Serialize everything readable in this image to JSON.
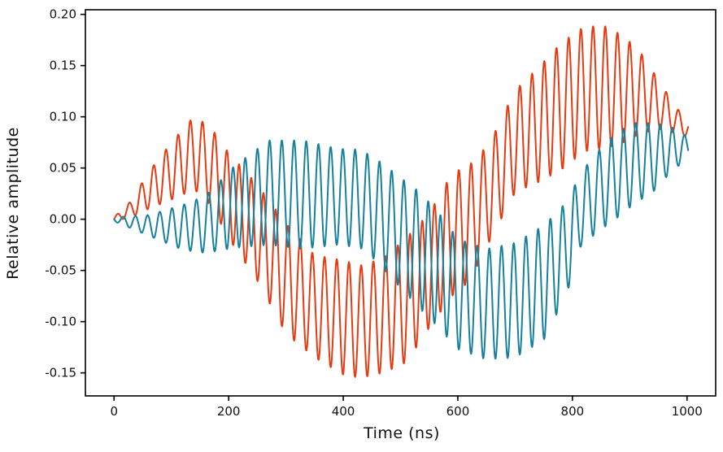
{
  "chart_data": {
    "type": "line",
    "title": "",
    "xlabel": "Time (ns)",
    "ylabel": "Relative amplitude",
    "xlim": [
      -50,
      1050
    ],
    "ylim": [
      -0.1725,
      0.2045
    ],
    "grid": false,
    "legend": "none",
    "frame_color": "#000000",
    "tick_label_color": "#111111",
    "background_color": "#ffffff",
    "x_ticks": {
      "values": [
        0,
        200,
        400,
        600,
        800,
        1000
      ],
      "labels": [
        "0",
        "200",
        "400",
        "600",
        "800",
        "1000"
      ]
    },
    "y_ticks": {
      "values": [
        0.2,
        0.15,
        0.1,
        0.05,
        0.0,
        -0.05,
        -0.1,
        -0.15
      ],
      "labels": [
        "0.20",
        "0.15",
        "0.10",
        "0.05",
        "0.00",
        "-0.05",
        "-0.10",
        "-0.15"
      ]
    },
    "signal_model": "value(t) = midline(t) + phase_sign * amplitude(t) * sin(2*pi*t / carrier_period_ns)",
    "carrier_period_ns": 21.3,
    "t_start": 0,
    "t_end": 1002,
    "t_step": 0.75,
    "series": [
      {
        "name": "signal-red",
        "color": "#e63b11",
        "linewidth": 2,
        "phase_sign": 1,
        "midline": [
          [
            0,
            0.0
          ],
          [
            30,
            0.01
          ],
          [
            60,
            0.028
          ],
          [
            100,
            0.047
          ],
          [
            140,
            0.065
          ],
          [
            170,
            0.051
          ],
          [
            200,
            0.023
          ],
          [
            250,
            -0.013
          ],
          [
            300,
            -0.058
          ],
          [
            350,
            -0.085
          ],
          [
            400,
            -0.096
          ],
          [
            430,
            -0.1
          ],
          [
            470,
            -0.094
          ],
          [
            510,
            -0.079
          ],
          [
            550,
            -0.05
          ],
          [
            590,
            -0.015
          ],
          [
            620,
            -0.004
          ],
          [
            655,
            0.026
          ],
          [
            700,
            0.076
          ],
          [
            740,
            0.092
          ],
          [
            780,
            0.11
          ],
          [
            820,
            0.127
          ],
          [
            855,
            0.129
          ],
          [
            890,
            0.127
          ],
          [
            920,
            0.123
          ],
          [
            955,
            0.11
          ],
          [
            980,
            0.097
          ],
          [
            1002,
            0.088
          ]
        ],
        "amplitude": [
          [
            0,
            0.002
          ],
          [
            30,
            0.008
          ],
          [
            60,
            0.018
          ],
          [
            100,
            0.028
          ],
          [
            140,
            0.036
          ],
          [
            170,
            0.038
          ],
          [
            200,
            0.042
          ],
          [
            250,
            0.047
          ],
          [
            300,
            0.054
          ],
          [
            350,
            0.05
          ],
          [
            400,
            0.056
          ],
          [
            430,
            0.055
          ],
          [
            470,
            0.056
          ],
          [
            510,
            0.061
          ],
          [
            550,
            0.056
          ],
          [
            590,
            0.06
          ],
          [
            620,
            0.057
          ],
          [
            655,
            0.048
          ],
          [
            700,
            0.05
          ],
          [
            740,
            0.056
          ],
          [
            780,
            0.062
          ],
          [
            820,
            0.061
          ],
          [
            855,
            0.06
          ],
          [
            890,
            0.052
          ],
          [
            920,
            0.039
          ],
          [
            955,
            0.022
          ],
          [
            980,
            0.013
          ],
          [
            1002,
            0.008
          ]
        ],
        "observed_extrema": {
          "max": 0.19,
          "max_at_t": 840,
          "min": -0.155,
          "min_at_t": 430,
          "end_value": 0.089
        }
      },
      {
        "name": "signal-teal",
        "color": "#16809e",
        "linewidth": 2,
        "phase_sign": -1,
        "midline": [
          [
            0,
            0.0
          ],
          [
            60,
            -0.006
          ],
          [
            120,
            -0.008
          ],
          [
            160,
            -0.005
          ],
          [
            210,
            0.012
          ],
          [
            270,
            0.026
          ],
          [
            330,
            0.024
          ],
          [
            390,
            0.022
          ],
          [
            430,
            0.02
          ],
          [
            460,
            0.008
          ],
          [
            490,
            -0.008
          ],
          [
            535,
            -0.031
          ],
          [
            570,
            -0.052
          ],
          [
            600,
            -0.073
          ],
          [
            650,
            -0.083
          ],
          [
            700,
            -0.079
          ],
          [
            750,
            -0.062
          ],
          [
            790,
            -0.028
          ],
          [
            815,
            0.01
          ],
          [
            850,
            0.03
          ],
          [
            880,
            0.044
          ],
          [
            910,
            0.055
          ],
          [
            940,
            0.06
          ],
          [
            970,
            0.068
          ],
          [
            1002,
            0.07
          ]
        ],
        "amplitude": [
          [
            0,
            0.002
          ],
          [
            60,
            0.01
          ],
          [
            120,
            0.022
          ],
          [
            160,
            0.028
          ],
          [
            210,
            0.04
          ],
          [
            270,
            0.051
          ],
          [
            330,
            0.053
          ],
          [
            390,
            0.047
          ],
          [
            430,
            0.048
          ],
          [
            460,
            0.05
          ],
          [
            490,
            0.053
          ],
          [
            535,
            0.057
          ],
          [
            570,
            0.056
          ],
          [
            600,
            0.054
          ],
          [
            650,
            0.054
          ],
          [
            700,
            0.056
          ],
          [
            750,
            0.056
          ],
          [
            790,
            0.045
          ],
          [
            815,
            0.036
          ],
          [
            850,
            0.04
          ],
          [
            880,
            0.042
          ],
          [
            910,
            0.039
          ],
          [
            940,
            0.034
          ],
          [
            970,
            0.023
          ],
          [
            1002,
            0.01
          ]
        ],
        "observed_extrema": {
          "max": 0.094,
          "max_at_t": 930,
          "min": -0.137,
          "min_at_t": 655,
          "end_value": 0.067
        }
      }
    ]
  }
}
